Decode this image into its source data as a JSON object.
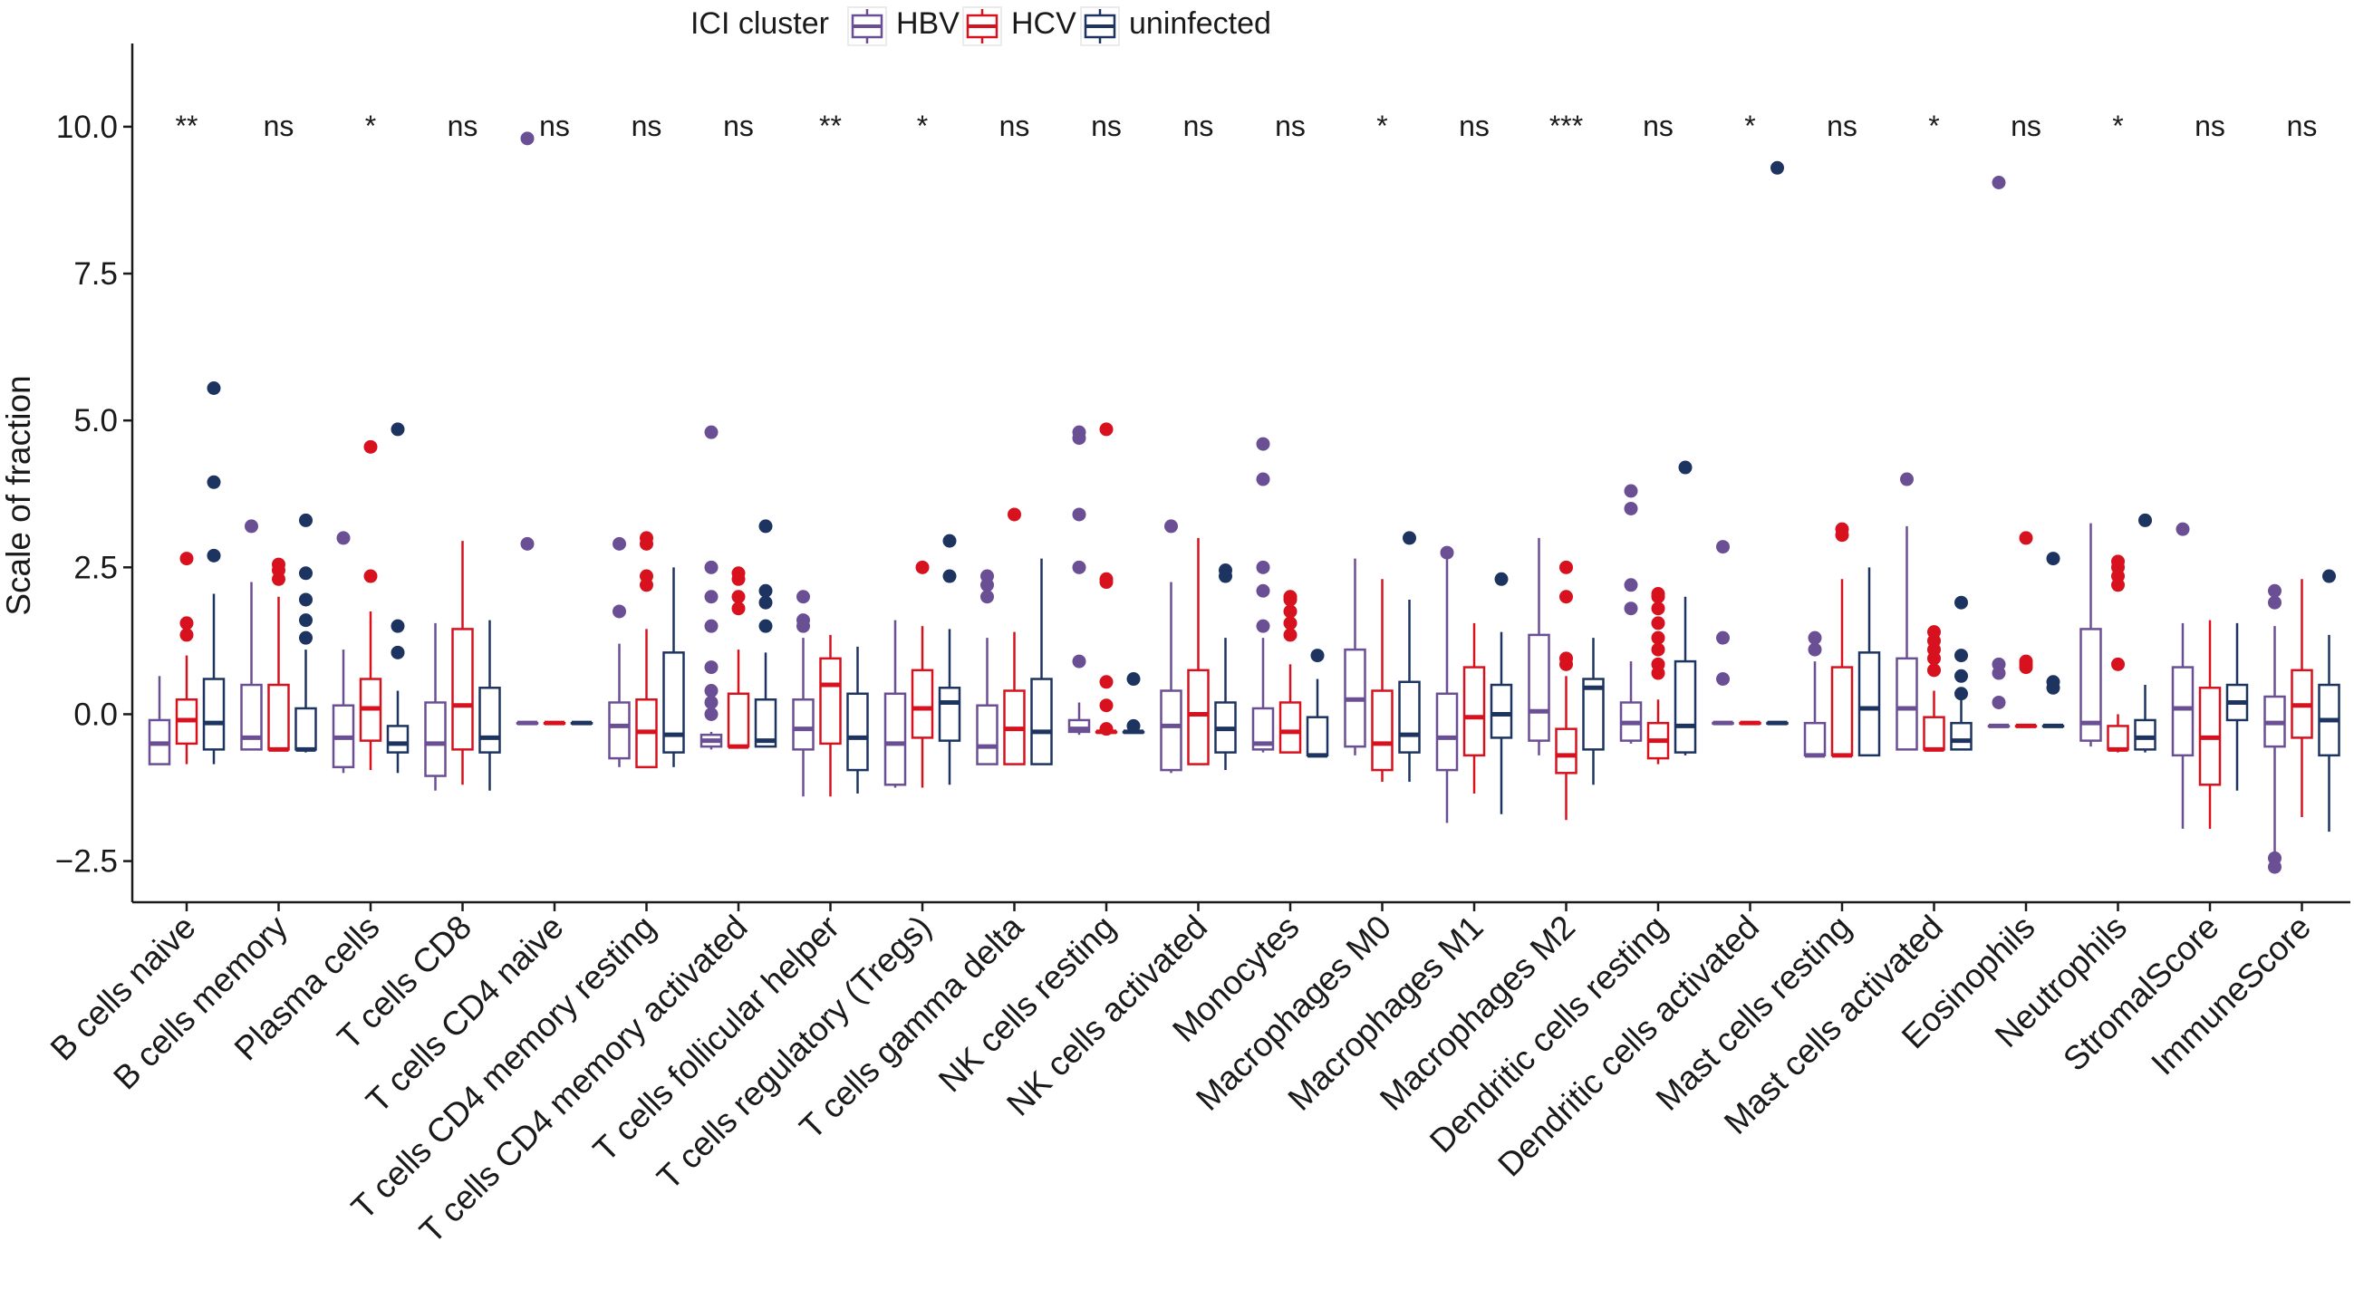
{
  "chart_data": {
    "type": "boxplot",
    "title": "",
    "xlabel": "",
    "ylabel": "Scale of fraction",
    "ylim": [
      -3.2,
      10.8
    ],
    "yticks": [
      -2.5,
      0.0,
      2.5,
      5.0,
      7.5,
      10.0
    ],
    "ytick_labels": [
      "−2.5",
      "0.0",
      "2.5",
      "5.0",
      "7.5",
      "10.0"
    ],
    "legend": {
      "title": "ICI cluster",
      "placement": "top",
      "entries": [
        {
          "name": "HBV",
          "color": "#6b4f94"
        },
        {
          "name": "HCV",
          "color": "#d7121e"
        },
        {
          "name": "uninfected",
          "color": "#1d3461"
        }
      ]
    },
    "categories": [
      "B cells naive",
      "B cells memory",
      "Plasma cells",
      "T cells CD8",
      "T cells CD4 naive",
      "T cells CD4 memory resting",
      "T cells CD4 memory activated",
      "T cells follicular helper",
      "T cells regulatory (Tregs)",
      "T cells gamma delta",
      "NK cells resting",
      "NK cells activated",
      "Monocytes",
      "Macrophages M0",
      "Macrophages M1",
      "Macrophages M2",
      "Dendritic cells resting",
      "Dendritic cells activated",
      "Mast cells resting",
      "Mast cells activated",
      "Eosinophils",
      "Neutrophils",
      "StromalScore",
      "ImmuneScore"
    ],
    "significance": [
      "**",
      "ns",
      "*",
      "ns",
      "ns",
      "ns",
      "ns",
      "**",
      "*",
      "ns",
      "ns",
      "ns",
      "ns",
      "*",
      "ns",
      "***",
      "ns",
      "*",
      "ns",
      "*",
      "ns",
      "*",
      "ns",
      "ns"
    ],
    "series": [
      {
        "name": "HBV",
        "boxes": [
          {
            "lw": -0.85,
            "q1": -0.85,
            "med": -0.5,
            "q3": -0.1,
            "uw": 0.65,
            "out": []
          },
          {
            "lw": -0.6,
            "q1": -0.6,
            "med": -0.4,
            "q3": 0.5,
            "uw": 2.25,
            "out": [
              3.2
            ]
          },
          {
            "lw": -1.0,
            "q1": -0.9,
            "med": -0.4,
            "q3": 0.15,
            "uw": 1.1,
            "out": [
              3.0
            ]
          },
          {
            "lw": -1.3,
            "q1": -1.05,
            "med": -0.5,
            "q3": 0.2,
            "uw": 1.55,
            "out": []
          },
          {
            "lw": -0.15,
            "q1": -0.15,
            "med": -0.15,
            "q3": -0.15,
            "uw": -0.15,
            "out": [
              2.9,
              9.8
            ]
          },
          {
            "lw": -0.9,
            "q1": -0.75,
            "med": -0.2,
            "q3": 0.2,
            "uw": 1.2,
            "out": [
              1.75,
              2.9
            ]
          },
          {
            "lw": -0.6,
            "q1": -0.55,
            "med": -0.45,
            "q3": -0.35,
            "uw": -0.3,
            "out": [
              0.0,
              0.2,
              0.4,
              0.8,
              1.5,
              2.0,
              2.5,
              4.8
            ]
          },
          {
            "lw": -1.4,
            "q1": -0.6,
            "med": -0.25,
            "q3": 0.25,
            "uw": 1.3,
            "out": [
              1.5,
              1.6,
              2.0
            ]
          },
          {
            "lw": -1.25,
            "q1": -1.2,
            "med": -0.5,
            "q3": 0.35,
            "uw": 1.6,
            "out": []
          },
          {
            "lw": -0.85,
            "q1": -0.85,
            "med": -0.55,
            "q3": 0.15,
            "uw": 1.3,
            "out": [
              2.0,
              2.2,
              2.35
            ]
          },
          {
            "lw": -0.35,
            "q1": -0.3,
            "med": -0.25,
            "q3": -0.1,
            "uw": 0.2,
            "out": [
              0.9,
              2.5,
              3.4,
              4.7,
              4.8
            ]
          },
          {
            "lw": -1.0,
            "q1": -0.95,
            "med": -0.2,
            "q3": 0.4,
            "uw": 2.25,
            "out": [
              3.2
            ]
          },
          {
            "lw": -0.65,
            "q1": -0.6,
            "med": -0.5,
            "q3": 0.1,
            "uw": 1.3,
            "out": [
              1.5,
              2.1,
              2.5,
              4.0,
              4.6
            ]
          },
          {
            "lw": -0.7,
            "q1": -0.55,
            "med": 0.25,
            "q3": 1.1,
            "uw": 2.65,
            "out": []
          },
          {
            "lw": -1.85,
            "q1": -0.95,
            "med": -0.4,
            "q3": 0.35,
            "uw": 2.65,
            "out": [
              2.75
            ]
          },
          {
            "lw": -0.7,
            "q1": -0.45,
            "med": 0.05,
            "q3": 1.35,
            "uw": 3.0,
            "out": []
          },
          {
            "lw": -0.5,
            "q1": -0.45,
            "med": -0.15,
            "q3": 0.2,
            "uw": 0.9,
            "out": [
              1.8,
              2.2,
              3.5,
              3.8
            ]
          },
          {
            "lw": -0.15,
            "q1": -0.15,
            "med": -0.15,
            "q3": -0.15,
            "uw": -0.15,
            "out": [
              0.6,
              1.3,
              2.85
            ]
          },
          {
            "lw": -0.7,
            "q1": -0.7,
            "med": -0.7,
            "q3": -0.15,
            "uw": 0.9,
            "out": [
              1.1,
              1.3
            ]
          },
          {
            "lw": -0.6,
            "q1": -0.6,
            "med": 0.1,
            "q3": 0.95,
            "uw": 3.2,
            "out": [
              4.0
            ]
          },
          {
            "lw": -0.2,
            "q1": -0.2,
            "med": -0.2,
            "q3": -0.2,
            "uw": -0.2,
            "out": [
              0.2,
              0.7,
              0.85,
              9.05
            ]
          },
          {
            "lw": -0.55,
            "q1": -0.45,
            "med": -0.15,
            "q3": 1.45,
            "uw": 3.25,
            "out": []
          },
          {
            "lw": -1.95,
            "q1": -0.7,
            "med": 0.1,
            "q3": 0.8,
            "uw": 1.55,
            "out": [
              3.15
            ]
          },
          {
            "lw": -2.4,
            "q1": -0.55,
            "med": -0.15,
            "q3": 0.3,
            "uw": 1.5,
            "out": [
              -2.6,
              -2.45,
              1.9,
              2.1
            ]
          }
        ]
      },
      {
        "name": "HCV",
        "boxes": [
          {
            "lw": -0.85,
            "q1": -0.5,
            "med": -0.1,
            "q3": 0.25,
            "uw": 1.0,
            "out": [
              1.35,
              1.55,
              2.65
            ]
          },
          {
            "lw": -0.6,
            "q1": -0.6,
            "med": -0.6,
            "q3": 0.5,
            "uw": 2.0,
            "out": [
              2.3,
              2.45,
              2.55
            ]
          },
          {
            "lw": -0.95,
            "q1": -0.45,
            "med": 0.1,
            "q3": 0.6,
            "uw": 1.75,
            "out": [
              2.35,
              4.55
            ]
          },
          {
            "lw": -1.2,
            "q1": -0.6,
            "med": 0.15,
            "q3": 1.45,
            "uw": 2.95,
            "out": []
          },
          {
            "lw": -0.15,
            "q1": -0.15,
            "med": -0.15,
            "q3": -0.15,
            "uw": -0.15,
            "out": []
          },
          {
            "lw": -0.9,
            "q1": -0.9,
            "med": -0.3,
            "q3": 0.25,
            "uw": 1.45,
            "out": [
              2.2,
              2.35,
              2.9,
              3.0
            ]
          },
          {
            "lw": -0.55,
            "q1": -0.55,
            "med": -0.55,
            "q3": 0.35,
            "uw": 1.1,
            "out": [
              1.8,
              2.0,
              2.3,
              2.4
            ]
          },
          {
            "lw": -1.4,
            "q1": -0.5,
            "med": 0.5,
            "q3": 0.95,
            "uw": 1.35,
            "out": []
          },
          {
            "lw": -1.25,
            "q1": -0.4,
            "med": 0.1,
            "q3": 0.75,
            "uw": 1.5,
            "out": [
              2.5
            ]
          },
          {
            "lw": -0.85,
            "q1": -0.85,
            "med": -0.25,
            "q3": 0.4,
            "uw": 1.4,
            "out": [
              3.4
            ]
          },
          {
            "lw": -0.3,
            "q1": -0.3,
            "med": -0.3,
            "q3": -0.3,
            "uw": -0.3,
            "out": [
              -0.25,
              0.15,
              0.55,
              2.25,
              2.3,
              4.85
            ]
          },
          {
            "lw": -0.85,
            "q1": -0.85,
            "med": 0.0,
            "q3": 0.75,
            "uw": 3.0,
            "out": []
          },
          {
            "lw": -0.65,
            "q1": -0.65,
            "med": -0.3,
            "q3": 0.2,
            "uw": 0.85,
            "out": [
              1.35,
              1.55,
              1.75,
              1.95,
              2.0
            ]
          },
          {
            "lw": -1.15,
            "q1": -0.95,
            "med": -0.5,
            "q3": 0.4,
            "uw": 2.3,
            "out": []
          },
          {
            "lw": -1.35,
            "q1": -0.7,
            "med": -0.05,
            "q3": 0.8,
            "uw": 1.55,
            "out": []
          },
          {
            "lw": -1.8,
            "q1": -1.0,
            "med": -0.7,
            "q3": -0.25,
            "uw": 0.65,
            "out": [
              0.85,
              0.95,
              2.0,
              2.5
            ]
          },
          {
            "lw": -0.85,
            "q1": -0.75,
            "med": -0.45,
            "q3": -0.15,
            "uw": 0.25,
            "out": [
              0.7,
              0.85,
              1.1,
              1.3,
              1.55,
              1.8,
              2.0,
              2.05
            ]
          },
          {
            "lw": -0.15,
            "q1": -0.15,
            "med": -0.15,
            "q3": -0.15,
            "uw": -0.15,
            "out": []
          },
          {
            "lw": -0.7,
            "q1": -0.7,
            "med": -0.7,
            "q3": 0.8,
            "uw": 2.3,
            "out": [
              3.05,
              3.15
            ]
          },
          {
            "lw": -0.6,
            "q1": -0.6,
            "med": -0.6,
            "q3": -0.05,
            "uw": 0.4,
            "out": [
              0.75,
              0.95,
              1.1,
              1.25,
              1.4
            ]
          },
          {
            "lw": -0.2,
            "q1": -0.2,
            "med": -0.2,
            "q3": -0.2,
            "uw": -0.2,
            "out": [
              0.8,
              0.85,
              0.9,
              3.0
            ]
          },
          {
            "lw": -0.65,
            "q1": -0.6,
            "med": -0.6,
            "q3": -0.2,
            "uw": 0.0,
            "out": [
              0.85,
              2.2,
              2.35,
              2.5,
              2.6
            ]
          },
          {
            "lw": -1.95,
            "q1": -1.2,
            "med": -0.4,
            "q3": 0.45,
            "uw": 1.6,
            "out": []
          },
          {
            "lw": -1.75,
            "q1": -0.4,
            "med": 0.15,
            "q3": 0.75,
            "uw": 2.3,
            "out": []
          }
        ]
      },
      {
        "name": "uninfected",
        "boxes": [
          {
            "lw": -0.85,
            "q1": -0.6,
            "med": -0.15,
            "q3": 0.6,
            "uw": 2.05,
            "out": [
              2.7,
              3.95,
              5.55
            ]
          },
          {
            "lw": -0.65,
            "q1": -0.6,
            "med": -0.6,
            "q3": 0.1,
            "uw": 1.1,
            "out": [
              1.3,
              1.6,
              1.95,
              2.4,
              3.3
            ]
          },
          {
            "lw": -1.0,
            "q1": -0.65,
            "med": -0.5,
            "q3": -0.2,
            "uw": 0.4,
            "out": [
              1.05,
              1.5,
              4.85
            ]
          },
          {
            "lw": -1.3,
            "q1": -0.65,
            "med": -0.4,
            "q3": 0.45,
            "uw": 1.6,
            "out": []
          },
          {
            "lw": -0.15,
            "q1": -0.15,
            "med": -0.15,
            "q3": -0.15,
            "uw": -0.15,
            "out": []
          },
          {
            "lw": -0.9,
            "q1": -0.65,
            "med": -0.35,
            "q3": 1.05,
            "uw": 2.5,
            "out": []
          },
          {
            "lw": -0.55,
            "q1": -0.55,
            "med": -0.45,
            "q3": 0.25,
            "uw": 1.05,
            "out": [
              1.5,
              1.9,
              2.1,
              3.2
            ]
          },
          {
            "lw": -1.35,
            "q1": -0.95,
            "med": -0.4,
            "q3": 0.35,
            "uw": 1.15,
            "out": []
          },
          {
            "lw": -1.2,
            "q1": -0.45,
            "med": 0.2,
            "q3": 0.45,
            "uw": 1.45,
            "out": [
              2.35,
              2.95
            ]
          },
          {
            "lw": -0.85,
            "q1": -0.85,
            "med": -0.3,
            "q3": 0.6,
            "uw": 2.65,
            "out": []
          },
          {
            "lw": -0.3,
            "q1": -0.3,
            "med": -0.3,
            "q3": -0.3,
            "uw": -0.3,
            "out": [
              -0.2,
              0.6
            ]
          },
          {
            "lw": -0.95,
            "q1": -0.65,
            "med": -0.25,
            "q3": 0.2,
            "uw": 1.3,
            "out": [
              2.35,
              2.45
            ]
          },
          {
            "lw": -0.7,
            "q1": -0.7,
            "med": -0.7,
            "q3": -0.05,
            "uw": 0.6,
            "out": [
              1.0
            ]
          },
          {
            "lw": -1.15,
            "q1": -0.65,
            "med": -0.35,
            "q3": 0.55,
            "uw": 1.95,
            "out": [
              3.0
            ]
          },
          {
            "lw": -1.7,
            "q1": -0.4,
            "med": 0.0,
            "q3": 0.5,
            "uw": 1.4,
            "out": [
              2.3
            ]
          },
          {
            "lw": -1.2,
            "q1": -0.6,
            "med": 0.45,
            "q3": 0.6,
            "uw": 1.3,
            "out": []
          },
          {
            "lw": -0.7,
            "q1": -0.65,
            "med": -0.2,
            "q3": 0.9,
            "uw": 2.0,
            "out": [
              4.2
            ]
          },
          {
            "lw": -0.15,
            "q1": -0.15,
            "med": -0.15,
            "q3": -0.15,
            "uw": -0.15,
            "out": [
              9.3
            ]
          },
          {
            "lw": -0.7,
            "q1": -0.7,
            "med": 0.1,
            "q3": 1.05,
            "uw": 2.5,
            "out": []
          },
          {
            "lw": -0.6,
            "q1": -0.6,
            "med": -0.45,
            "q3": -0.15,
            "uw": 0.3,
            "out": [
              0.35,
              0.65,
              1.0,
              1.9
            ]
          },
          {
            "lw": -0.2,
            "q1": -0.2,
            "med": -0.2,
            "q3": -0.2,
            "uw": -0.2,
            "out": [
              0.45,
              0.55,
              2.65
            ]
          },
          {
            "lw": -0.65,
            "q1": -0.6,
            "med": -0.4,
            "q3": -0.1,
            "uw": 0.5,
            "out": [
              3.3
            ]
          },
          {
            "lw": -1.3,
            "q1": -0.1,
            "med": 0.2,
            "q3": 0.5,
            "uw": 1.55,
            "out": []
          },
          {
            "lw": -2.0,
            "q1": -0.7,
            "med": -0.1,
            "q3": 0.5,
            "uw": 1.35,
            "out": [
              2.35
            ]
          }
        ]
      }
    ]
  }
}
